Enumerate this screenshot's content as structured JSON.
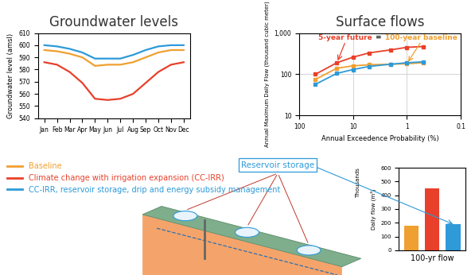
{
  "chart_data": [
    {
      "type": "line",
      "title": "Groundwater levels",
      "ylabel": "Groundwater level (amsl)",
      "categories": [
        "Jan",
        "Feb",
        "Mar",
        "Apr",
        "May",
        "Jun",
        "Jul",
        "Aug",
        "Sep",
        "Oct",
        "Nov",
        "Dec"
      ],
      "ylim": [
        540,
        610
      ],
      "yticks": [
        540,
        550,
        560,
        570,
        580,
        590,
        600,
        610
      ],
      "grid": false,
      "legend": "lower left",
      "series": [
        {
          "name": "Baseline",
          "color": "#f0a030",
          "values": [
            596,
            595,
            593,
            590,
            583,
            584,
            584,
            586,
            590,
            594,
            596,
            596
          ]
        },
        {
          "name": "Climate change with irrigation expansion (CC-IRR)",
          "color": "#e8402a",
          "values": [
            586,
            584,
            578,
            569,
            556,
            555,
            556,
            560,
            569,
            578,
            584,
            586
          ]
        },
        {
          "name": "CC-IRR, reservoir storage, drip and energy subsidy management",
          "color": "#2e9ad8",
          "values": [
            600,
            599,
            597,
            594,
            589,
            589,
            589,
            592,
            596,
            599,
            600,
            600
          ]
        }
      ]
    },
    {
      "type": "line",
      "title": "Surface flows",
      "xlabel": "Annual Exceedence Probability (%)",
      "ylabel": "Annual Maximum Daily Flow (thousand cubic meter)",
      "log": true,
      "grid": true,
      "marker": "square",
      "x": [
        50,
        20,
        10,
        5,
        2,
        1,
        0.5
      ],
      "xlim": [
        100,
        0.1
      ],
      "xticks": [
        100,
        10,
        1,
        0.1
      ],
      "ylim": [
        10,
        1000
      ],
      "yticks": [
        10,
        100,
        {
          "value": 1000,
          "label": "1,000"
        }
      ],
      "series": [
        {
          "color": "#f0a030",
          "values": [
            75,
            140,
            160,
            170,
            175,
            180,
            190
          ]
        },
        {
          "color": "#e8402a",
          "values": [
            100,
            190,
            260,
            330,
            390,
            450,
            470
          ]
        },
        {
          "color": "#2e9ad8",
          "values": [
            57,
            105,
            130,
            155,
            175,
            190,
            200
          ]
        }
      ],
      "annotations": [
        {
          "text": "5-year future",
          "color": "#e8402a",
          "x": 20
        },
        {
          "text": "=",
          "color": "#000000"
        },
        {
          "text": "100-year baseline",
          "color": "#f0a030",
          "x": 1
        }
      ]
    },
    {
      "type": "bar",
      "xlabel": "100-yr flow",
      "ylabel": "Daily flow (m³)",
      "categories": [
        null,
        null,
        null
      ],
      "values": [
        180,
        450,
        190
      ],
      "colors": [
        "#f0a030",
        "#e8402a",
        "#2e9ad8"
      ],
      "ylim": [
        0,
        600
      ],
      "yticks": [
        0,
        100,
        200,
        300,
        400,
        500,
        600
      ],
      "annotations": [
        "Thousands"
      ]
    }
  ],
  "diagram_label": "Reservoir storage"
}
